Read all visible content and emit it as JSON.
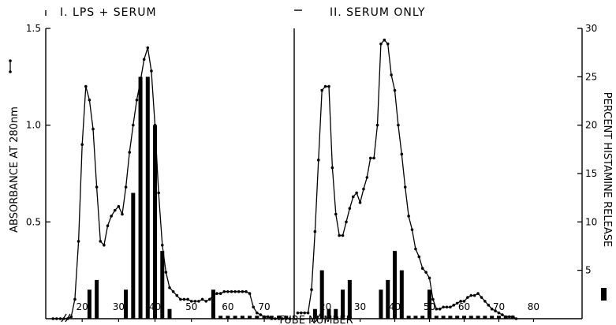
{
  "chart_data": {
    "type": "line",
    "xlabel": "TUBE NUMBER",
    "ylabel_left": "ABSORBANCE AT 280nm",
    "ylabel_right": "PERCENT HISTAMINE RELEASE",
    "left_axis": {
      "ylim": [
        0,
        1.5
      ],
      "ticks": [
        0.5,
        1.0,
        1.5
      ],
      "tick_labels": [
        "0.5",
        "1.0",
        "1.5"
      ]
    },
    "right_axis": {
      "ylim": [
        0,
        30
      ],
      "ticks": [
        5,
        10,
        15,
        20,
        25,
        30
      ],
      "tick_labels": [
        "5",
        "10",
        "15",
        "20",
        "25",
        "30"
      ]
    },
    "panels": [
      {
        "title": "I. LPS + SERUM",
        "xlim": [
          10,
          78
        ],
        "xticks": [
          20,
          30,
          40,
          50,
          60,
          70
        ],
        "xtick_labels": [
          "20",
          "30",
          "40",
          "50",
          "60",
          "70"
        ],
        "absorbance": {
          "x": [
            12,
            13,
            14,
            15,
            16,
            17,
            18,
            19,
            20,
            21,
            22,
            23,
            24,
            25,
            26,
            27,
            28,
            29,
            30,
            31,
            32,
            33,
            34,
            35,
            36,
            37,
            38,
            39,
            40,
            41,
            42,
            43,
            44,
            45,
            46,
            47,
            48,
            49,
            50,
            51,
            52,
            53,
            54,
            55,
            56,
            57,
            58,
            59,
            60,
            61,
            62,
            63,
            64,
            65,
            66,
            67,
            68,
            69,
            70,
            71,
            72,
            73,
            74,
            75,
            76,
            77
          ],
          "y": [
            0.0,
            0.0,
            0.0,
            0.0,
            0.0,
            0.01,
            0.1,
            0.4,
            0.9,
            1.2,
            1.13,
            0.98,
            0.68,
            0.4,
            0.38,
            0.48,
            0.53,
            0.56,
            0.58,
            0.54,
            0.68,
            0.86,
            1.0,
            1.13,
            1.23,
            1.34,
            1.4,
            1.28,
            1.0,
            0.65,
            0.38,
            0.24,
            0.16,
            0.14,
            0.12,
            0.1,
            0.1,
            0.1,
            0.09,
            0.09,
            0.09,
            0.1,
            0.09,
            0.1,
            0.12,
            0.13,
            0.13,
            0.14,
            0.14,
            0.14,
            0.14,
            0.14,
            0.14,
            0.14,
            0.13,
            0.06,
            0.03,
            0.02,
            0.01,
            0.01,
            0.0,
            0.0,
            0.0,
            0.0,
            0.0,
            0.0
          ]
        },
        "histamine_bars": {
          "x": [
            22,
            24,
            32,
            34,
            36,
            38,
            40,
            42,
            44,
            56,
            58,
            60,
            62,
            64,
            66,
            68,
            70,
            72,
            74,
            76
          ],
          "values": [
            3,
            4,
            3,
            13,
            25,
            25,
            20,
            7,
            1,
            3,
            0.3,
            0.3,
            0.3,
            0.3,
            0.3,
            0.3,
            0.3,
            0.3,
            0.3,
            0.3
          ]
        }
      },
      {
        "title": "II. SERUM ONLY",
        "xlim": [
          11,
          94
        ],
        "xticks": [
          20,
          30,
          40,
          50,
          60,
          70,
          80
        ],
        "xtick_labels": [
          "20",
          "30",
          "40",
          "50",
          "60",
          "70",
          "80"
        ],
        "absorbance": {
          "x": [
            12,
            13,
            14,
            15,
            16,
            17,
            18,
            19,
            20,
            21,
            22,
            23,
            24,
            25,
            26,
            27,
            28,
            29,
            30,
            31,
            32,
            33,
            34,
            35,
            36,
            37,
            38,
            39,
            40,
            41,
            42,
            43,
            44,
            45,
            46,
            47,
            48,
            49,
            50,
            51,
            52,
            53,
            54,
            55,
            56,
            57,
            58,
            59,
            60,
            61,
            62,
            63,
            64,
            65,
            66,
            67,
            68,
            69,
            70,
            71,
            72,
            73,
            74,
            75
          ],
          "y": [
            0.03,
            0.03,
            0.03,
            0.03,
            0.15,
            0.45,
            0.82,
            1.18,
            1.2,
            1.2,
            0.78,
            0.54,
            0.43,
            0.43,
            0.5,
            0.57,
            0.63,
            0.65,
            0.6,
            0.67,
            0.73,
            0.83,
            0.83,
            1.0,
            1.42,
            1.44,
            1.42,
            1.26,
            1.18,
            1.0,
            0.85,
            0.68,
            0.53,
            0.46,
            0.36,
            0.32,
            0.26,
            0.24,
            0.21,
            0.1,
            0.05,
            0.05,
            0.06,
            0.06,
            0.06,
            0.07,
            0.08,
            0.09,
            0.09,
            0.11,
            0.12,
            0.12,
            0.13,
            0.11,
            0.09,
            0.07,
            0.05,
            0.04,
            0.03,
            0.02,
            0.01,
            0.01,
            0.01,
            0.0
          ]
        },
        "histamine_bars": {
          "x": [
            17,
            19,
            21,
            23,
            25,
            27,
            36,
            38,
            40,
            42,
            44,
            46,
            48,
            50,
            52,
            54,
            56,
            58,
            60,
            62,
            64,
            66,
            68,
            70,
            72,
            74
          ],
          "values": [
            1,
            5,
            1,
            1,
            3,
            4,
            3,
            4,
            7,
            5,
            0.3,
            0.3,
            0.3,
            3,
            0.3,
            0.3,
            0.3,
            0.3,
            0.3,
            0.3,
            0.3,
            0.3,
            0.3,
            0.3,
            0.3,
            0.3
          ]
        }
      }
    ]
  }
}
